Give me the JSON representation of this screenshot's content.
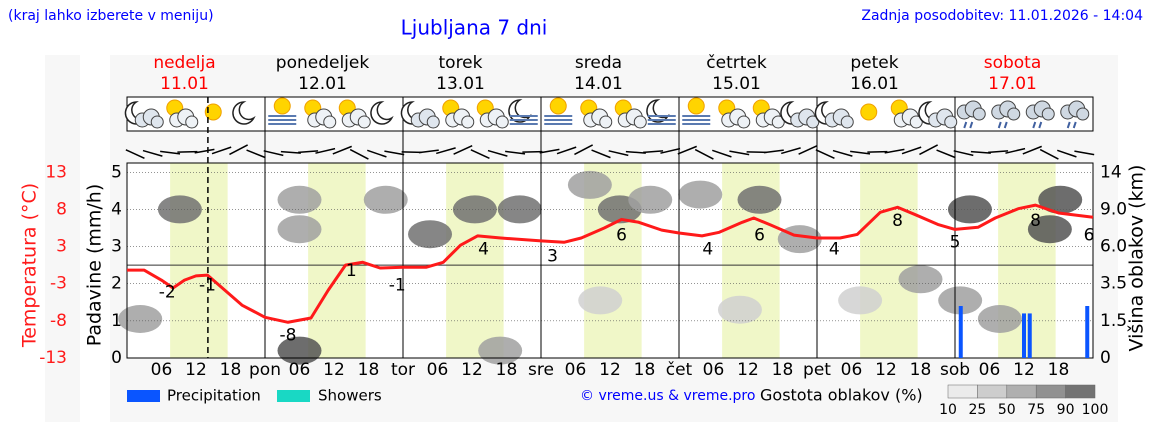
{
  "header": {
    "menu_note": "(kraj lahko izberete v meniju)",
    "title": "Ljubljana 7 dni",
    "updated": "Zadnja posodobitev: 11.01.2026 - 14:04"
  },
  "chart_data": {
    "type": "meteogram",
    "days": [
      {
        "name": "nedelja",
        "date": "11.01",
        "color": "#ff0000"
      },
      {
        "name": "ponedeljek",
        "date": "12.01",
        "color": "#000000"
      },
      {
        "name": "torek",
        "date": "13.01",
        "color": "#000000"
      },
      {
        "name": "sreda",
        "date": "14.01",
        "color": "#000000"
      },
      {
        "name": "četrtek",
        "date": "15.01",
        "color": "#000000"
      },
      {
        "name": "petek",
        "date": "16.01",
        "color": "#000000"
      },
      {
        "name": "sobota",
        "date": "17.01",
        "color": "#ff0000"
      }
    ],
    "xlim": [
      0,
      168
    ],
    "xticks": [
      {
        "value": 6,
        "label": "06"
      },
      {
        "value": 12,
        "label": "12"
      },
      {
        "value": 18,
        "label": "18"
      },
      {
        "value": 24,
        "label": "pon"
      },
      {
        "value": 30,
        "label": "06"
      },
      {
        "value": 36,
        "label": "12"
      },
      {
        "value": 42,
        "label": "18"
      },
      {
        "value": 48,
        "label": "tor"
      },
      {
        "value": 54,
        "label": "06"
      },
      {
        "value": 60,
        "label": "12"
      },
      {
        "value": 66,
        "label": "18"
      },
      {
        "value": 72,
        "label": "sre"
      },
      {
        "value": 78,
        "label": "06"
      },
      {
        "value": 84,
        "label": "12"
      },
      {
        "value": 90,
        "label": "18"
      },
      {
        "value": 96,
        "label": "čet"
      },
      {
        "value": 102,
        "label": "06"
      },
      {
        "value": 108,
        "label": "12"
      },
      {
        "value": 114,
        "label": "18"
      },
      {
        "value": 120,
        "label": "pet"
      },
      {
        "value": 126,
        "label": "06"
      },
      {
        "value": 132,
        "label": "12"
      },
      {
        "value": 138,
        "label": "18"
      },
      {
        "value": 144,
        "label": "sob"
      },
      {
        "value": 150,
        "label": "06"
      },
      {
        "value": 156,
        "label": "12"
      },
      {
        "value": 162,
        "label": "18"
      }
    ],
    "ylabel": "Padavine (mm/h)",
    "ylim": [
      0,
      5.25
    ],
    "yticks": [
      0,
      1,
      2,
      3,
      4,
      5
    ],
    "grid": true,
    "temperature": {
      "label": "Temperatura (°C)",
      "color": "#ff1a1a",
      "ylim": [
        -13,
        14.3
      ],
      "yticks": [
        -13,
        {
          "value": -7.8,
          "label": "-8"
        },
        {
          "value": -2.6,
          "label": "-3"
        },
        {
          "value": 2.6,
          "label": "3"
        },
        {
          "value": 7.8,
          "label": "8"
        },
        13
      ],
      "reference": 0,
      "x": [
        0,
        3,
        6,
        8,
        10,
        12,
        14,
        17,
        20,
        24,
        28,
        32,
        35,
        38,
        41,
        44,
        48,
        52,
        55,
        58,
        61,
        65,
        72,
        76,
        79,
        83,
        86,
        89,
        93,
        96,
        100,
        103,
        107,
        109,
        112,
        116,
        120,
        124,
        127,
        131,
        134,
        137,
        141,
        144,
        148,
        151,
        155,
        158,
        162,
        168
      ],
      "values": [
        -0.7,
        -0.7,
        -2.1,
        -3.2,
        -2.1,
        -1.5,
        -1.4,
        -3.5,
        -5.6,
        -7.3,
        -8.0,
        -7.4,
        -3.5,
        0,
        0.4,
        -0.4,
        -0.3,
        -0.3,
        0.4,
        2.8,
        4.1,
        3.8,
        3.4,
        3.2,
        3.8,
        5.2,
        6.4,
        6.0,
        4.9,
        4.5,
        4.1,
        4.6,
        6.0,
        6.6,
        5.6,
        4.2,
        3.8,
        3.8,
        4.3,
        7.4,
        8.1,
        7.1,
        5.7,
        5.0,
        5.3,
        6.6,
        7.9,
        8.4,
        7.3,
        6.7
      ],
      "labels": {
        "x": [
          7,
          14,
          28,
          39,
          47,
          62,
          74,
          86,
          101,
          110,
          123,
          134,
          144,
          158,
          168
        ],
        "values": [
          -2,
          -1,
          -8,
          1,
          -1,
          4,
          3,
          6,
          4,
          6,
          4,
          8,
          5,
          8,
          6
        ]
      }
    },
    "cloud_height": {
      "label": "Višina oblakov (km)",
      "yticks": [
        0,
        1.5,
        3.5,
        {
          "value": 6,
          "label": "6.0"
        },
        {
          "value": 9,
          "label": "9.0"
        },
        14
      ]
    },
    "clouds": {
      "x": [
        2.3,
        9.2,
        30,
        30,
        45,
        52.7,
        60.5,
        68.3,
        80.5,
        85.7,
        91,
        99.7,
        110,
        117,
        127.5,
        138,
        146.6,
        160.5,
        162.3,
        144.9,
        151.8,
        82.3,
        106.6,
        64.9,
        30
      ],
      "km": [
        1.6,
        9.0,
        10.3,
        7.4,
        10.3,
        7.0,
        9.0,
        9.0,
        12.3,
        9.0,
        10.3,
        11,
        10.3,
        6.6,
        2.6,
        3.8,
        9.0,
        7.4,
        10.3,
        2.6,
        1.6,
        2.6,
        2.1,
        0.3,
        0.3
      ],
      "density": [
        50,
        75,
        50,
        50,
        50,
        75,
        75,
        75,
        50,
        75,
        50,
        50,
        75,
        50,
        25,
        50,
        90,
        90,
        90,
        50,
        50,
        25,
        25,
        50,
        90
      ]
    },
    "precipitation": {
      "name": "Precipitation",
      "color": "#0a55ff",
      "x": [
        145,
        156,
        157,
        167
      ],
      "values": [
        1.4,
        1.2,
        1.2,
        1.4
      ]
    },
    "showers": {
      "name": "Showers",
      "color": "#19d8c4"
    },
    "now_hour": 14.07,
    "credit": "© vreme.us & vreme.pro",
    "density_scale": {
      "label": "Gostota oblakov (%)",
      "ticks": [
        10,
        25,
        50,
        75,
        90,
        100
      ]
    }
  }
}
